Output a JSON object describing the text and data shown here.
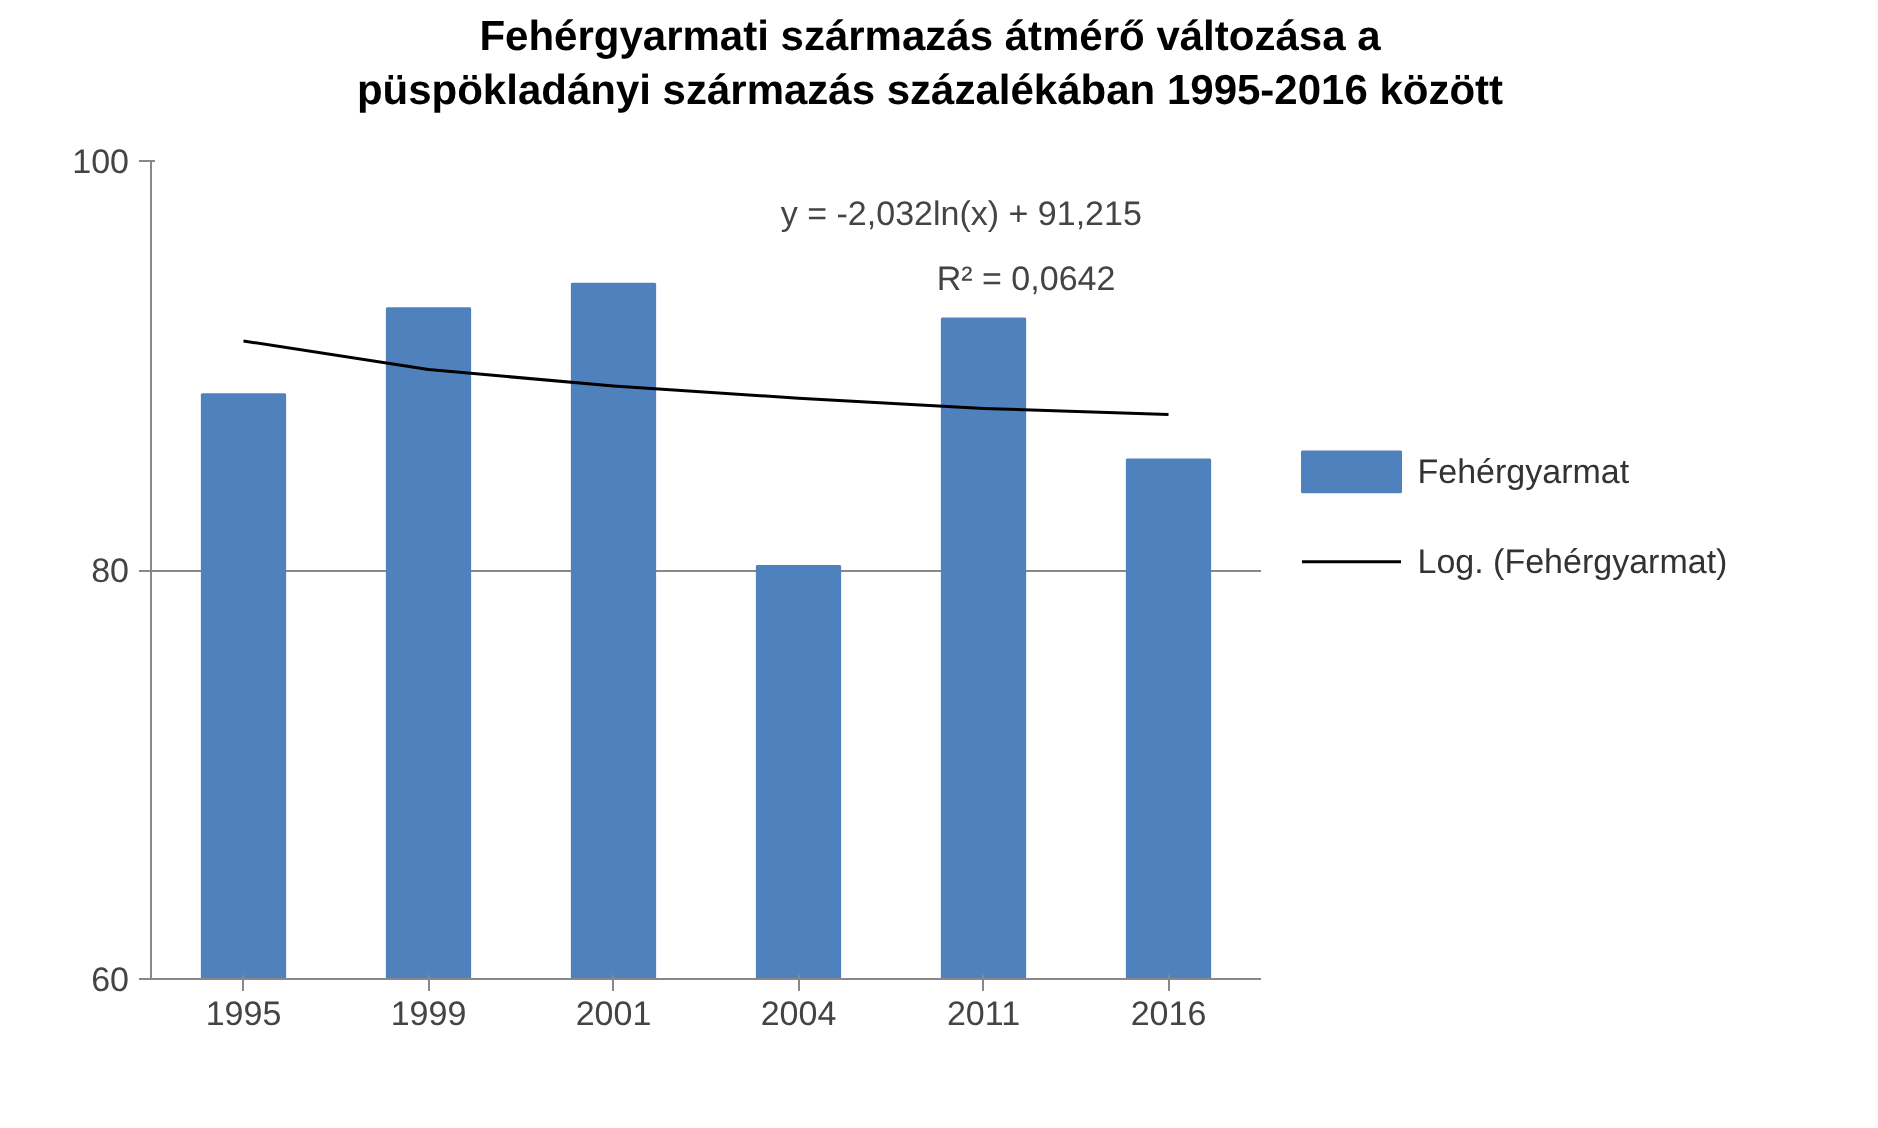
{
  "chart_data": {
    "type": "bar",
    "title": "Fehérgyarmati származás átmérő változása a\npüspökladányi származás százalékában 1995-2016 között",
    "categories": [
      "1995",
      "1999",
      "2001",
      "2004",
      "2011",
      "2016"
    ],
    "series": [
      {
        "name": "Fehérgyarmat",
        "color": "#4f81bd",
        "values": [
          88.6,
          92.8,
          94.0,
          80.2,
          92.3,
          85.4
        ]
      },
      {
        "name": "Log. (Fehérgyarmat)",
        "type": "line",
        "color": "#000000",
        "values": [
          91.2,
          89.8,
          89.0,
          88.4,
          87.9,
          87.6
        ]
      }
    ],
    "ylim": [
      60,
      100
    ],
    "yticks": [
      60,
      80,
      100
    ],
    "grid": "y",
    "legend": "right",
    "annotations": [
      "y = -2,032ln(x) + 91,215",
      "R² = 0,0642"
    ]
  }
}
